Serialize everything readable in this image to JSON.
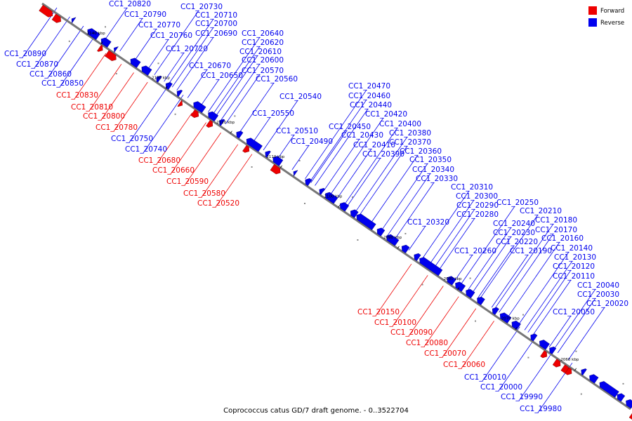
{
  "caption": "Coprococcus catus GD/7 draft genome. - 0..3522704",
  "legend": [
    {
      "label": "Forward",
      "color": "#ee0000"
    },
    {
      "label": "Reverse",
      "color": "#0000ee"
    }
  ],
  "colors": {
    "forward": "#ee0000",
    "reverse": "#0000ee",
    "axis": "#777777"
  },
  "ticks": [
    "2140 kbp",
    "2130 kbp",
    "2120 kbp",
    "2110 kbp",
    "2100 kbp",
    "2090 kbp",
    "2080 kbp",
    "2070 kbp",
    "2060 kbp"
  ],
  "gene_labels": [
    {
      "name": "CC1_20820",
      "strand": "reverse"
    },
    {
      "name": "CC1_20730",
      "strand": "reverse"
    },
    {
      "name": "CC1_20790",
      "strand": "reverse"
    },
    {
      "name": "CC1_20710",
      "strand": "reverse"
    },
    {
      "name": "CC1_20770",
      "strand": "reverse"
    },
    {
      "name": "CC1_20700",
      "strand": "reverse"
    },
    {
      "name": "CC1_20760",
      "strand": "reverse"
    },
    {
      "name": "CC1_20690",
      "strand": "reverse"
    },
    {
      "name": "CC1_20640",
      "strand": "reverse"
    },
    {
      "name": "CC1_20720",
      "strand": "reverse"
    },
    {
      "name": "CC1_20620",
      "strand": "reverse"
    },
    {
      "name": "CC1_20610",
      "strand": "reverse"
    },
    {
      "name": "CC1_20890",
      "strand": "reverse"
    },
    {
      "name": "CC1_20600",
      "strand": "reverse"
    },
    {
      "name": "CC1_20870",
      "strand": "reverse"
    },
    {
      "name": "CC1_20670",
      "strand": "reverse"
    },
    {
      "name": "CC1_20570",
      "strand": "reverse"
    },
    {
      "name": "CC1_20860",
      "strand": "reverse"
    },
    {
      "name": "CC1_20650",
      "strand": "reverse"
    },
    {
      "name": "CC1_20560",
      "strand": "reverse"
    },
    {
      "name": "CC1_20850",
      "strand": "reverse"
    },
    {
      "name": "CC1_20470",
      "strand": "reverse"
    },
    {
      "name": "CC1_20830",
      "strand": "forward"
    },
    {
      "name": "CC1_20540",
      "strand": "reverse"
    },
    {
      "name": "CC1_20460",
      "strand": "reverse"
    },
    {
      "name": "CC1_20810",
      "strand": "forward"
    },
    {
      "name": "CC1_20440",
      "strand": "reverse"
    },
    {
      "name": "CC1_20550",
      "strand": "reverse"
    },
    {
      "name": "CC1_20800",
      "strand": "forward"
    },
    {
      "name": "CC1_20420",
      "strand": "reverse"
    },
    {
      "name": "CC1_20400",
      "strand": "reverse"
    },
    {
      "name": "CC1_20450",
      "strand": "reverse"
    },
    {
      "name": "CC1_20780",
      "strand": "forward"
    },
    {
      "name": "CC1_20510",
      "strand": "reverse"
    },
    {
      "name": "CC1_20380",
      "strand": "reverse"
    },
    {
      "name": "CC1_20430",
      "strand": "reverse"
    },
    {
      "name": "CC1_20750",
      "strand": "reverse"
    },
    {
      "name": "CC1_20490",
      "strand": "reverse"
    },
    {
      "name": "CC1_20370",
      "strand": "reverse"
    },
    {
      "name": "CC1_20410",
      "strand": "reverse"
    },
    {
      "name": "CC1_20740",
      "strand": "reverse"
    },
    {
      "name": "CC1_20360",
      "strand": "reverse"
    },
    {
      "name": "CC1_20390",
      "strand": "reverse"
    },
    {
      "name": "CC1_20680",
      "strand": "forward"
    },
    {
      "name": "CC1_20350",
      "strand": "reverse"
    },
    {
      "name": "CC1_20660",
      "strand": "forward"
    },
    {
      "name": "CC1_20340",
      "strand": "reverse"
    },
    {
      "name": "CC1_20330",
      "strand": "reverse"
    },
    {
      "name": "CC1_20590",
      "strand": "forward"
    },
    {
      "name": "CC1_20310",
      "strand": "reverse"
    },
    {
      "name": "CC1_20580",
      "strand": "forward"
    },
    {
      "name": "CC1_20300",
      "strand": "reverse"
    },
    {
      "name": "CC1_20520",
      "strand": "forward"
    },
    {
      "name": "CC1_20250",
      "strand": "reverse"
    },
    {
      "name": "CC1_20290",
      "strand": "reverse"
    },
    {
      "name": "CC1_20210",
      "strand": "reverse"
    },
    {
      "name": "CC1_20280",
      "strand": "reverse"
    },
    {
      "name": "CC1_20180",
      "strand": "reverse"
    },
    {
      "name": "CC1_20240",
      "strand": "reverse"
    },
    {
      "name": "CC1_20320",
      "strand": "reverse"
    },
    {
      "name": "CC1_20170",
      "strand": "reverse"
    },
    {
      "name": "CC1_20230",
      "strand": "reverse"
    },
    {
      "name": "CC1_20160",
      "strand": "reverse"
    },
    {
      "name": "CC1_20220",
      "strand": "reverse"
    },
    {
      "name": "CC1_20140",
      "strand": "reverse"
    },
    {
      "name": "CC1_20260",
      "strand": "reverse"
    },
    {
      "name": "CC1_20190",
      "strand": "reverse"
    },
    {
      "name": "CC1_20130",
      "strand": "reverse"
    },
    {
      "name": "CC1_20120",
      "strand": "reverse"
    },
    {
      "name": "CC1_20110",
      "strand": "reverse"
    },
    {
      "name": "CC1_20040",
      "strand": "reverse"
    },
    {
      "name": "CC1_20030",
      "strand": "reverse"
    },
    {
      "name": "CC1_20020",
      "strand": "reverse"
    },
    {
      "name": "CC1_20150",
      "strand": "forward"
    },
    {
      "name": "CC1_20050",
      "strand": "reverse"
    },
    {
      "name": "CC1_20100",
      "strand": "forward"
    },
    {
      "name": "CC1_20090",
      "strand": "forward"
    },
    {
      "name": "CC1_20080",
      "strand": "forward"
    },
    {
      "name": "CC1_20070",
      "strand": "forward"
    },
    {
      "name": "CC1_20060",
      "strand": "forward"
    },
    {
      "name": "CC1_20010",
      "strand": "reverse"
    },
    {
      "name": "CC1_20000",
      "strand": "reverse"
    },
    {
      "name": "CC1_19990",
      "strand": "reverse"
    },
    {
      "name": "CC1_19980",
      "strand": "reverse"
    }
  ]
}
